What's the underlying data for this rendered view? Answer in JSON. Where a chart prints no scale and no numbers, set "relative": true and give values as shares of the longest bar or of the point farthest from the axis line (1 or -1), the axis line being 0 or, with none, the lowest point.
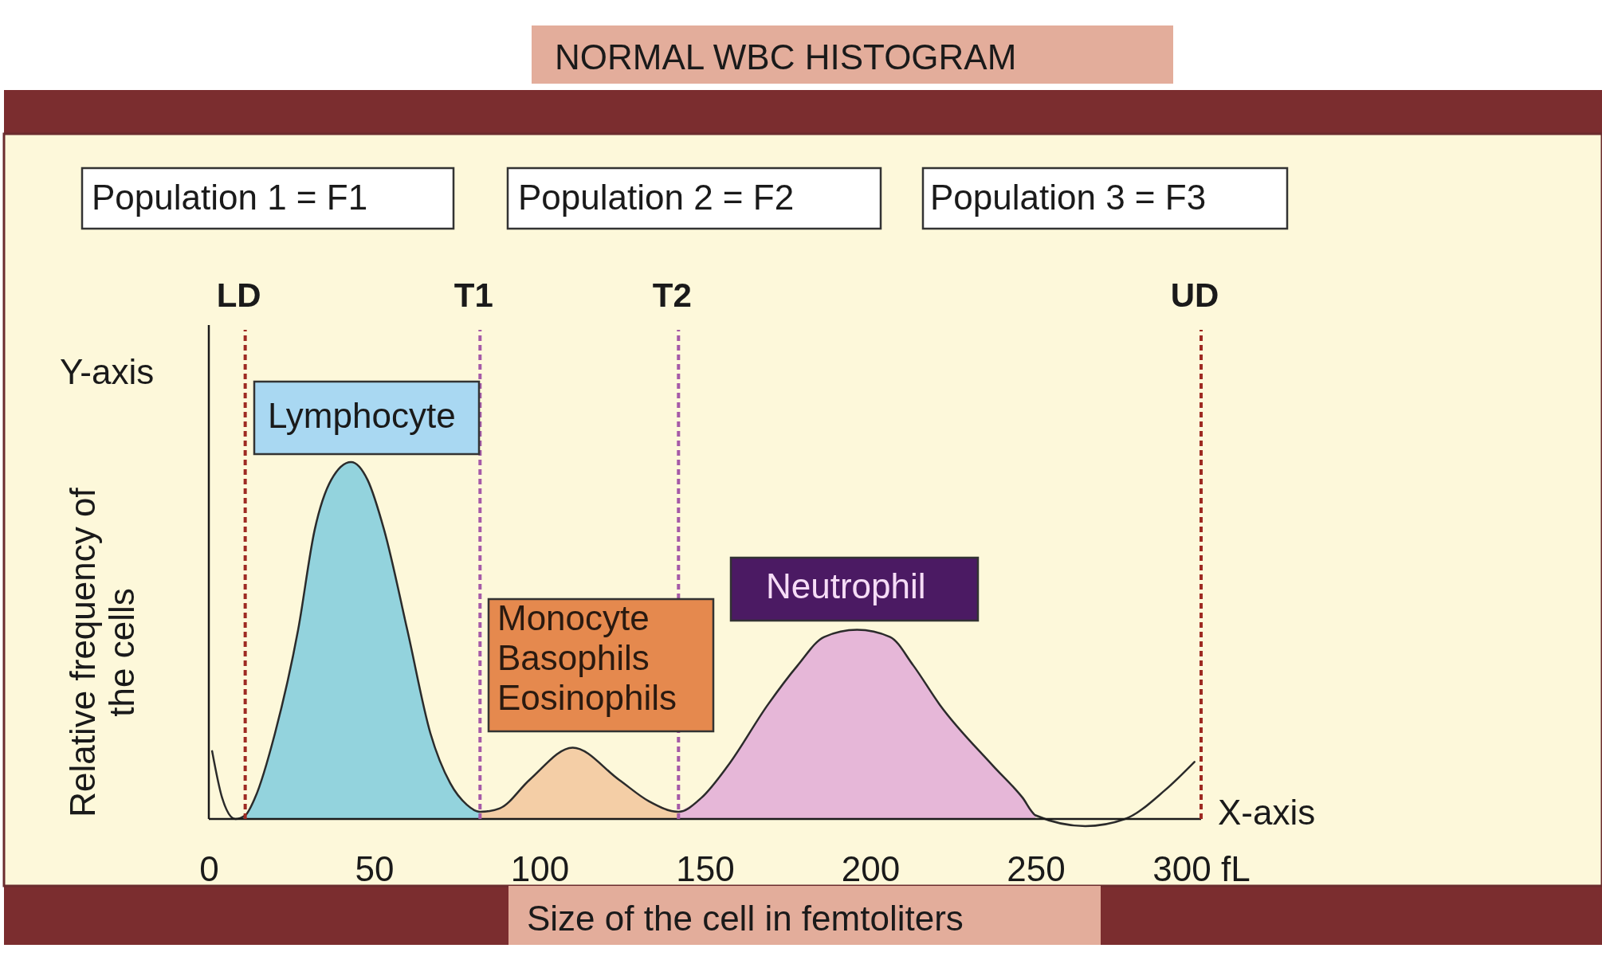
{
  "chart_data": {
    "type": "line",
    "title": "NORMAL WBC HISTOGRAM",
    "xlabel": "Size of the cell in femtoliters",
    "ylabel": "Relative frequency of\nthe cells",
    "relative": true,
    "tick_labels": "x",
    "xlim": [
      0,
      300
    ],
    "xticks": [
      0,
      50,
      100,
      150,
      200,
      250,
      {
        "value": 300,
        "label": "300 fL"
      }
    ],
    "series": [
      {
        "type": "area",
        "color": "#93d3dd",
        "x": [
          8,
          11,
          14,
          20,
          27,
          32,
          37,
          43,
          48,
          53,
          60,
          67,
          73,
          78,
          82
        ],
        "values": [
          0,
          0.01,
          0.06,
          0.24,
          0.53,
          0.81,
          0.95,
          1,
          0.95,
          0.81,
          0.53,
          0.24,
          0.1,
          0.04,
          0.02
        ]
      },
      {
        "type": "area",
        "color": "#f4cea6",
        "x": [
          82,
          88,
          97,
          110,
          124,
          133,
          142
        ],
        "values": [
          0.02,
          0.03,
          0.11,
          0.2,
          0.11,
          0.05,
          0.02
        ]
      },
      {
        "type": "area",
        "color": "#e6b7d8",
        "x": [
          142,
          149,
          157,
          169,
          178,
          186,
          196,
          206,
          213,
          221,
          237,
          246,
          250
        ],
        "values": [
          0.02,
          0.06,
          0.15,
          0.32,
          0.43,
          0.51,
          0.53,
          0.51,
          0.43,
          0.32,
          0.15,
          0.06,
          0.01
        ]
      },
      {
        "color": "#2b2b2b",
        "x": [
          1,
          4,
          8,
          11,
          14,
          20,
          27,
          32,
          37,
          43,
          48,
          53,
          60,
          67,
          73,
          78,
          82,
          88,
          97,
          110,
          124,
          133,
          142,
          149,
          157,
          169,
          178,
          186,
          196,
          206,
          213,
          221,
          237,
          246,
          250,
          265,
          277,
          289,
          298
        ],
        "values": [
          0.19,
          0.06,
          0,
          0.01,
          0.06,
          0.24,
          0.53,
          0.81,
          0.95,
          1,
          0.95,
          0.81,
          0.53,
          0.24,
          0.1,
          0.04,
          0.02,
          0.03,
          0.11,
          0.2,
          0.11,
          0.05,
          0.02,
          0.06,
          0.15,
          0.32,
          0.43,
          0.51,
          0.53,
          0.51,
          0.43,
          0.32,
          0.15,
          0.06,
          0.01,
          -0.02,
          0,
          0.08,
          0.16
        ]
      }
    ],
    "ref_lines": [
      {
        "axis": "x",
        "value": 11,
        "label": "LD",
        "color": "#9e2a22",
        "line_style": "dashed"
      },
      {
        "axis": "x",
        "value": 82,
        "label": "T1",
        "color": "#a65aa8",
        "line_style": "dashed"
      },
      {
        "axis": "x",
        "value": 142,
        "label": "T2",
        "color": "#a65aa8",
        "line_style": "dashed"
      },
      {
        "axis": "x",
        "value": 300,
        "label": "UD",
        "color": "#9e2a22",
        "line_style": "dashed"
      }
    ],
    "annotations": [
      "Population 1 = F1",
      "Population 2 = F2",
      "Population 3 = F3",
      "Lymphocyte",
      "Monocyte\nBasophils\nEosinophils",
      "Neutrophil",
      "Y-axis",
      "X-axis"
    ]
  }
}
